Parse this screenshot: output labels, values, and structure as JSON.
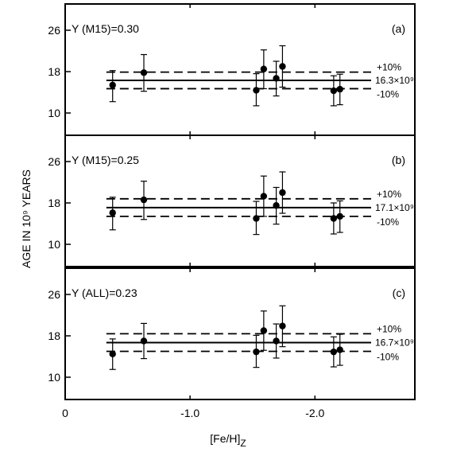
{
  "chart_data": {
    "type": "scatter",
    "xlabel": "[Fe/H]",
    "xlabel_subscript": "Z",
    "ylabel": "AGE IN 10⁹ YEARS",
    "xlim": [
      0,
      -2.8
    ],
    "ylim": [
      8,
      28
    ],
    "x_ticks": [
      0,
      -1.0,
      -2.0
    ],
    "x_tick_labels": [
      "0",
      "-1.0",
      "-2.0"
    ],
    "y_ticks": [
      10,
      18,
      26
    ],
    "y_tick_labels": [
      "10",
      "18",
      "26"
    ],
    "reference_line_x_range": [
      -0.33,
      -2.45
    ],
    "panels": [
      {
        "letter": "(a)",
        "title": "Y (M15)=0.30",
        "mean_value": 16.3,
        "mean_label": "16.3×10⁹",
        "upper_value": 17.9,
        "upper_label": "+10%",
        "lower_value": 14.7,
        "lower_label": "-10%",
        "points": [
          {
            "x": -0.38,
            "y": 15.4,
            "err_low": 3.2,
            "err_high": 2.8
          },
          {
            "x": -0.63,
            "y": 17.8,
            "err_low": 3.6,
            "err_high": 3.5
          },
          {
            "x": -1.53,
            "y": 14.4,
            "err_low": 3.0,
            "err_high": 3.2
          },
          {
            "x": -1.59,
            "y": 18.5,
            "err_low": 3.8,
            "err_high": 3.7
          },
          {
            "x": -1.69,
            "y": 16.7,
            "err_low": 3.4,
            "err_high": 3.3
          },
          {
            "x": -1.74,
            "y": 19.0,
            "err_low": 4.0,
            "err_high": 4.0
          },
          {
            "x": -2.15,
            "y": 14.3,
            "err_low": 2.9,
            "err_high": 2.9
          },
          {
            "x": -2.2,
            "y": 14.6,
            "err_low": 3.0,
            "err_high": 2.9
          }
        ]
      },
      {
        "letter": "(b)",
        "title": "Y (M15)=0.25",
        "mean_value": 17.1,
        "mean_label": "17.1×10⁹",
        "upper_value": 18.8,
        "upper_label": "+10%",
        "lower_value": 15.4,
        "lower_label": "-10%",
        "points": [
          {
            "x": -0.38,
            "y": 16.1,
            "err_low": 3.3,
            "err_high": 3.0
          },
          {
            "x": -0.63,
            "y": 18.6,
            "err_low": 3.8,
            "err_high": 3.6
          },
          {
            "x": -1.53,
            "y": 15.0,
            "err_low": 3.1,
            "err_high": 3.3
          },
          {
            "x": -1.59,
            "y": 19.3,
            "err_low": 3.9,
            "err_high": 3.9
          },
          {
            "x": -1.69,
            "y": 17.5,
            "err_low": 3.6,
            "err_high": 3.5
          },
          {
            "x": -1.74,
            "y": 20.0,
            "err_low": 4.0,
            "err_high": 4.0
          },
          {
            "x": -2.15,
            "y": 15.0,
            "err_low": 3.0,
            "err_high": 3.0
          },
          {
            "x": -2.2,
            "y": 15.4,
            "err_low": 3.1,
            "err_high": 3.0
          }
        ]
      },
      {
        "letter": "(c)",
        "title": "Y (ALL)=0.23",
        "mean_value": 16.7,
        "mean_label": "16.7×10⁹",
        "upper_value": 18.4,
        "upper_label": "+10%",
        "lower_value": 15.0,
        "lower_label": "-10%",
        "points": [
          {
            "x": -0.38,
            "y": 14.5,
            "err_low": 3.0,
            "err_high": 2.9
          },
          {
            "x": -0.63,
            "y": 17.0,
            "err_low": 3.4,
            "err_high": 3.4
          },
          {
            "x": -1.53,
            "y": 14.9,
            "err_low": 3.0,
            "err_high": 3.2
          },
          {
            "x": -1.59,
            "y": 19.0,
            "err_low": 3.8,
            "err_high": 3.8
          },
          {
            "x": -1.69,
            "y": 17.0,
            "err_low": 3.3,
            "err_high": 3.3
          },
          {
            "x": -1.74,
            "y": 19.9,
            "err_low": 4.0,
            "err_high": 3.9
          },
          {
            "x": -2.15,
            "y": 14.9,
            "err_low": 2.9,
            "err_high": 2.9
          },
          {
            "x": -2.2,
            "y": 15.3,
            "err_low": 3.0,
            "err_high": 3.0
          }
        ]
      }
    ]
  }
}
